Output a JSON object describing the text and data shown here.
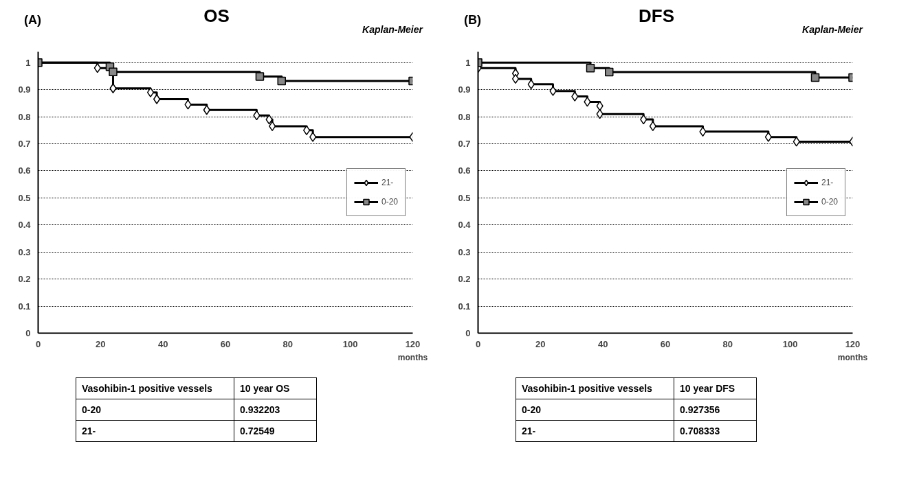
{
  "chart_data": [
    {
      "type": "step",
      "title": "OS",
      "xlabel": "months",
      "xlim": [
        0,
        120
      ],
      "ylim": [
        0,
        1.04
      ],
      "xticks": [
        0,
        20,
        40,
        60,
        80,
        100,
        120
      ],
      "yticks": [
        0,
        0.1,
        0.2,
        0.3,
        0.4,
        0.5,
        0.6,
        0.7,
        0.8,
        0.9,
        1
      ],
      "grid": "y",
      "legend": "right",
      "line_style": "solid",
      "annotations": [
        "(A)",
        "Kaplan-Meier",
        "Vasohibin-1 positive vessels",
        "10 year OS",
        "0-20",
        "0.932203",
        "21-",
        "0.72549"
      ],
      "series": [
        {
          "name": "21-",
          "color": "#000000",
          "marker": "diamond",
          "x": [
            0,
            19,
            24,
            36,
            38,
            48,
            54,
            70,
            74,
            75,
            86,
            88,
            120
          ],
          "values": [
            1,
            0.98,
            0.905,
            0.89,
            0.865,
            0.845,
            0.825,
            0.805,
            0.79,
            0.765,
            0.75,
            0.725,
            0.725
          ]
        },
        {
          "name": "0-20",
          "color": "#000000",
          "marker": "square",
          "x": [
            0,
            23,
            24,
            71,
            78,
            120
          ],
          "values": [
            1,
            0.985,
            0.966,
            0.949,
            0.932,
            0.932
          ]
        }
      ]
    },
    {
      "type": "step",
      "title": "DFS",
      "xlabel": "months",
      "xlim": [
        0,
        120
      ],
      "ylim": [
        0,
        1.04
      ],
      "xticks": [
        0,
        20,
        40,
        60,
        80,
        100,
        120
      ],
      "yticks": [
        0,
        0.1,
        0.2,
        0.3,
        0.4,
        0.5,
        0.6,
        0.7,
        0.8,
        0.9,
        1
      ],
      "grid": "y",
      "legend": "right",
      "line_style": "solid",
      "annotations": [
        "(B)",
        "Kaplan-Meier",
        "Vasohibin-1 positive vessels",
        "10 year DFS",
        "0-20",
        "0.927356",
        "21-",
        "0.708333"
      ],
      "series": [
        {
          "name": "21-",
          "color": "#000000",
          "marker": "diamond",
          "x": [
            0,
            12,
            12,
            17,
            24,
            31,
            35,
            39,
            39,
            53,
            56,
            72,
            93,
            102,
            120
          ],
          "values": [
            0.98,
            0.96,
            0.94,
            0.92,
            0.895,
            0.875,
            0.855,
            0.84,
            0.81,
            0.79,
            0.765,
            0.745,
            0.725,
            0.708,
            0.708
          ]
        },
        {
          "name": "0-20",
          "color": "#000000",
          "marker": "square",
          "x": [
            0,
            36,
            42,
            108,
            120
          ],
          "values": [
            1,
            0.98,
            0.965,
            0.945,
            0.945
          ]
        }
      ]
    }
  ]
}
